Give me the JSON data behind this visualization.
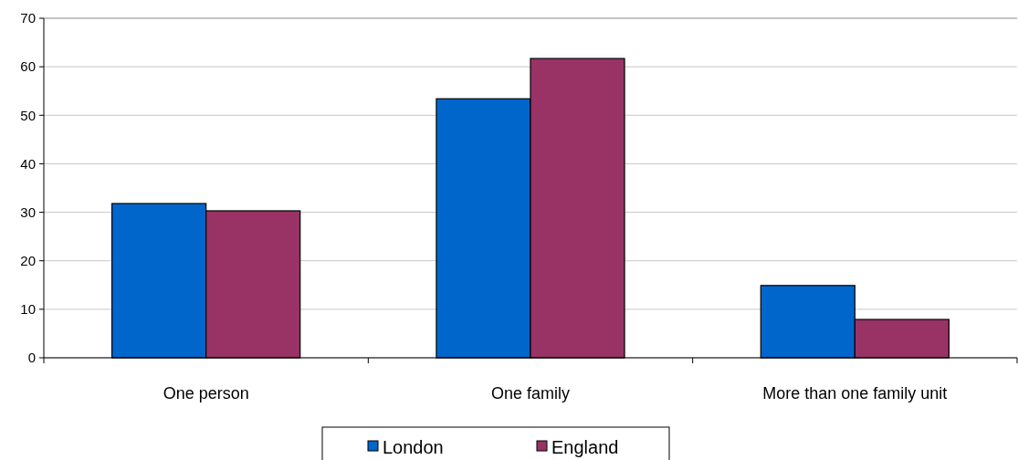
{
  "chart_data": {
    "type": "bar",
    "categories": [
      "One person",
      "One family",
      "More than one family unit"
    ],
    "series": [
      {
        "name": "London",
        "color": "#0066cc",
        "values": [
          31.8,
          53.4,
          14.9
        ]
      },
      {
        "name": "England",
        "color": "#993366",
        "values": [
          30.3,
          61.7,
          7.9
        ]
      }
    ],
    "ylim": [
      0,
      70
    ],
    "yticks": [
      0,
      10,
      20,
      30,
      40,
      50,
      60,
      70
    ],
    "grid": "y",
    "legend": "bottom"
  }
}
